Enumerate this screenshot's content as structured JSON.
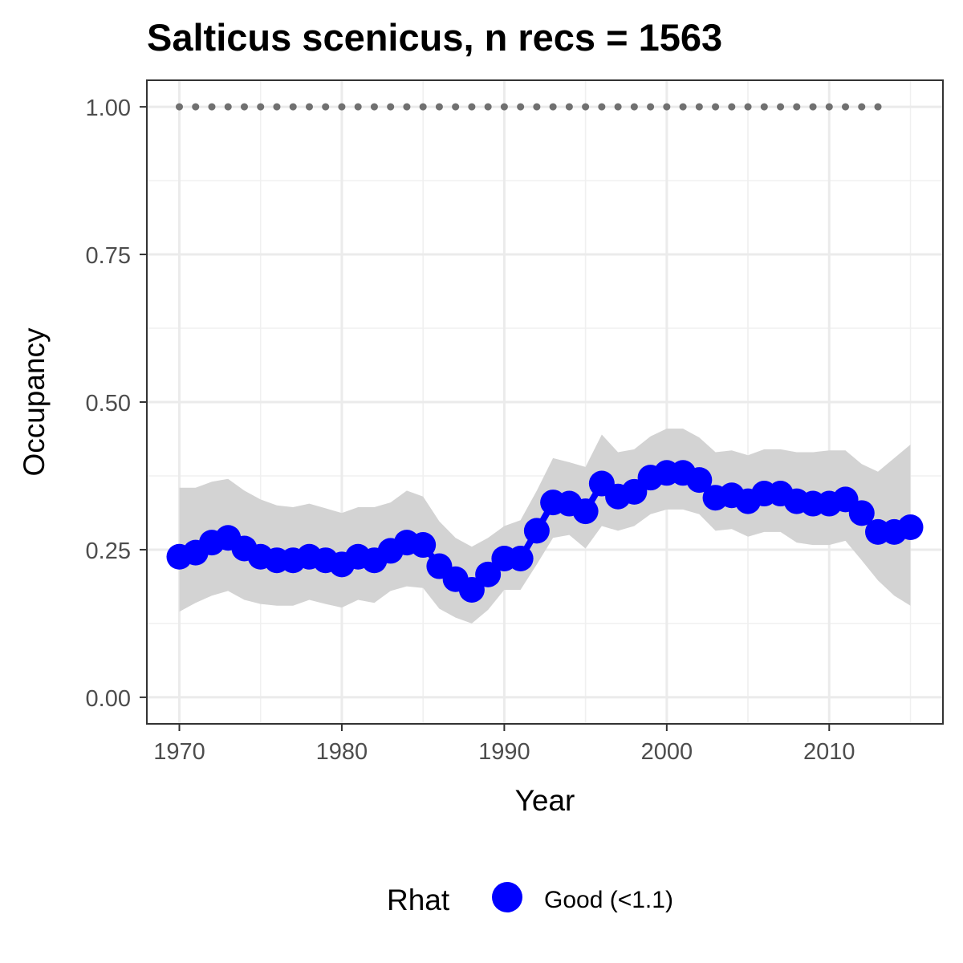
{
  "chart_data": {
    "type": "line",
    "title": "Salticus scenicus, n recs = 1563",
    "xlabel": "Year",
    "ylabel": "Occupancy",
    "xlim": [
      1968,
      2017
    ],
    "ylim": [
      -0.045,
      1.045
    ],
    "x_ticks": [
      1970,
      1980,
      1990,
      2000,
      2010
    ],
    "x_tick_labels": [
      "1970",
      "1980",
      "1990",
      "2000",
      "2010"
    ],
    "y_ticks": [
      0,
      0.25,
      0.5,
      0.75,
      1.0
    ],
    "y_tick_labels": [
      "0.00",
      "0.25",
      "0.50",
      "0.75",
      "1.00"
    ],
    "grid": true,
    "x": [
      1970,
      1971,
      1972,
      1973,
      1974,
      1975,
      1976,
      1977,
      1978,
      1979,
      1980,
      1981,
      1982,
      1983,
      1984,
      1985,
      1986,
      1987,
      1988,
      1989,
      1990,
      1991,
      1992,
      1993,
      1994,
      1995,
      1996,
      1997,
      1998,
      1999,
      2000,
      2001,
      2002,
      2003,
      2004,
      2005,
      2006,
      2007,
      2008,
      2009,
      2010,
      2011,
      2012,
      2013,
      2014,
      2015
    ],
    "series": [
      {
        "name": "Good (<1.1)",
        "color": "#0000ff",
        "values": [
          0.238,
          0.245,
          0.262,
          0.27,
          0.252,
          0.238,
          0.232,
          0.232,
          0.238,
          0.232,
          0.225,
          0.238,
          0.232,
          0.248,
          0.262,
          0.258,
          0.222,
          0.2,
          0.182,
          0.208,
          0.235,
          0.235,
          0.282,
          0.33,
          0.328,
          0.315,
          0.362,
          0.34,
          0.348,
          0.372,
          0.38,
          0.38,
          0.368,
          0.338,
          0.342,
          0.332,
          0.345,
          0.345,
          0.332,
          0.328,
          0.328,
          0.335,
          0.312,
          0.28,
          0.28,
          0.288
        ],
        "lower": [
          0.145,
          0.16,
          0.172,
          0.18,
          0.165,
          0.158,
          0.155,
          0.155,
          0.165,
          0.158,
          0.152,
          0.165,
          0.16,
          0.18,
          0.188,
          0.185,
          0.15,
          0.135,
          0.125,
          0.148,
          0.182,
          0.182,
          0.225,
          0.27,
          0.275,
          0.252,
          0.29,
          0.282,
          0.29,
          0.31,
          0.318,
          0.318,
          0.31,
          0.282,
          0.285,
          0.272,
          0.28,
          0.28,
          0.262,
          0.258,
          0.258,
          0.265,
          0.232,
          0.198,
          0.172,
          0.155
        ],
        "upper": [
          0.355,
          0.355,
          0.365,
          0.37,
          0.35,
          0.335,
          0.325,
          0.322,
          0.328,
          0.32,
          0.312,
          0.322,
          0.322,
          0.33,
          0.35,
          0.34,
          0.298,
          0.27,
          0.255,
          0.27,
          0.29,
          0.3,
          0.35,
          0.405,
          0.398,
          0.39,
          0.445,
          0.415,
          0.42,
          0.442,
          0.455,
          0.455,
          0.44,
          0.415,
          0.418,
          0.41,
          0.42,
          0.42,
          0.415,
          0.415,
          0.418,
          0.418,
          0.395,
          0.382,
          0.405,
          0.428
        ]
      }
    ],
    "reference_points": {
      "x": [
        1970,
        1971,
        1972,
        1973,
        1974,
        1975,
        1976,
        1977,
        1978,
        1979,
        1980,
        1981,
        1982,
        1983,
        1984,
        1985,
        1986,
        1987,
        1988,
        1989,
        1990,
        1991,
        1992,
        1993,
        1994,
        1995,
        1996,
        1997,
        1998,
        1999,
        2000,
        2001,
        2002,
        2003,
        2004,
        2005,
        2006,
        2007,
        2008,
        2009,
        2010,
        2011,
        2012,
        2013
      ],
      "y": 1.0,
      "color": "#707070"
    },
    "ribbon_color": "#d3d3d3",
    "legend": {
      "title": "Rhat",
      "label": "Good (<1.1)",
      "color": "#0000ff",
      "placement": "bottom"
    }
  }
}
